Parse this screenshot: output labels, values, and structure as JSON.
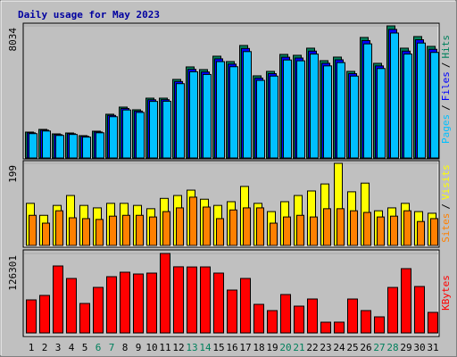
{
  "chart_data": [
    {
      "type": "bar",
      "title": "Daily usage for May 2023",
      "title_color": "#0000a0",
      "legend_separator": "/",
      "series": [
        {
          "name": "Hits",
          "color": "#00805c",
          "values": [
            1575,
            1738,
            1466,
            1520,
            1358,
            1629,
            2661,
            3095,
            2932,
            3638,
            3638,
            4778,
            5539,
            5376,
            6190,
            5864,
            6842,
            4996,
            5267,
            6299,
            6245,
            6679,
            5919,
            6136,
            5267,
            7331,
            5756,
            8034,
            6679,
            7385,
            6788
          ]
        },
        {
          "name": "Files",
          "color": "#0000ff",
          "values": [
            1530,
            1690,
            1420,
            1475,
            1315,
            1580,
            2590,
            3010,
            2850,
            3540,
            3545,
            4650,
            5390,
            5230,
            6030,
            5710,
            6660,
            4860,
            5130,
            6130,
            6080,
            6500,
            5760,
            5970,
            5130,
            7140,
            5600,
            7820,
            6500,
            7190,
            6610
          ]
        },
        {
          "name": "Pages",
          "color": "#00c0ff",
          "values": [
            1480,
            1640,
            1370,
            1430,
            1270,
            1530,
            2510,
            2920,
            2770,
            3440,
            3450,
            4520,
            5240,
            5080,
            5860,
            5550,
            6470,
            4720,
            4980,
            5960,
            5910,
            6320,
            5600,
            5800,
            4980,
            6940,
            5440,
            7600,
            6320,
            6990,
            6420
          ]
        }
      ],
      "ylim": [
        0,
        8034
      ],
      "yticks": [
        8034
      ]
    },
    {
      "type": "bar",
      "legend_separator": "/",
      "series": [
        {
          "name": "Visits",
          "color": "#ffff00",
          "values": [
            102,
            73,
            97,
            121,
            97,
            91,
            102,
            102,
            97,
            89,
            114,
            121,
            134,
            112,
            97,
            106,
            143,
            102,
            82,
            106,
            121,
            132,
            149,
            199,
            130,
            151,
            84,
            91,
            102,
            82,
            78
          ]
        },
        {
          "name": "Sites",
          "color": "#ff8000",
          "values": [
            73,
            54,
            84,
            67,
            65,
            63,
            71,
            73,
            73,
            69,
            82,
            91,
            117,
            93,
            65,
            86,
            91,
            91,
            54,
            69,
            73,
            69,
            89,
            89,
            84,
            80,
            69,
            71,
            84,
            58,
            65
          ]
        }
      ],
      "ylim": [
        0,
        199
      ],
      "yticks": [
        199
      ]
    },
    {
      "type": "bar",
      "categories": [
        "1",
        "2",
        "3",
        "4",
        "5",
        "6",
        "7",
        "8",
        "9",
        "10",
        "11",
        "12",
        "13",
        "14",
        "15",
        "16",
        "17",
        "18",
        "19",
        "20",
        "21",
        "22",
        "23",
        "24",
        "25",
        "26",
        "27",
        "28",
        "29",
        "30",
        "31"
      ],
      "category_colors": [
        "#000000",
        "#000000",
        "#000000",
        "#000000",
        "#000000",
        "#00805c",
        "#00805c",
        "#000000",
        "#000000",
        "#000000",
        "#000000",
        "#000000",
        "#00805c",
        "#00805c",
        "#000000",
        "#000000",
        "#000000",
        "#000000",
        "#000000",
        "#00805c",
        "#00805c",
        "#000000",
        "#000000",
        "#000000",
        "#000000",
        "#000000",
        "#00805c",
        "#00805c",
        "#000000",
        "#000000",
        "#000000"
      ],
      "series": [
        {
          "name": "KBytes",
          "color": "#ff0000",
          "values": [
            52503,
            59598,
            106425,
            86559,
            46827,
            72369,
            89397,
            96492,
            93654,
            95073,
            126301,
            105120,
            104870,
            104950,
            95100,
            68112,
            86600,
            45408,
            35475,
            61017,
            42570,
            53922,
            17028,
            17100,
            53900,
            35500,
            25542,
            72300,
            102168,
            73788,
            32637
          ]
        }
      ],
      "ylim": [
        0,
        126301
      ],
      "yticks": [
        126301
      ]
    }
  ]
}
